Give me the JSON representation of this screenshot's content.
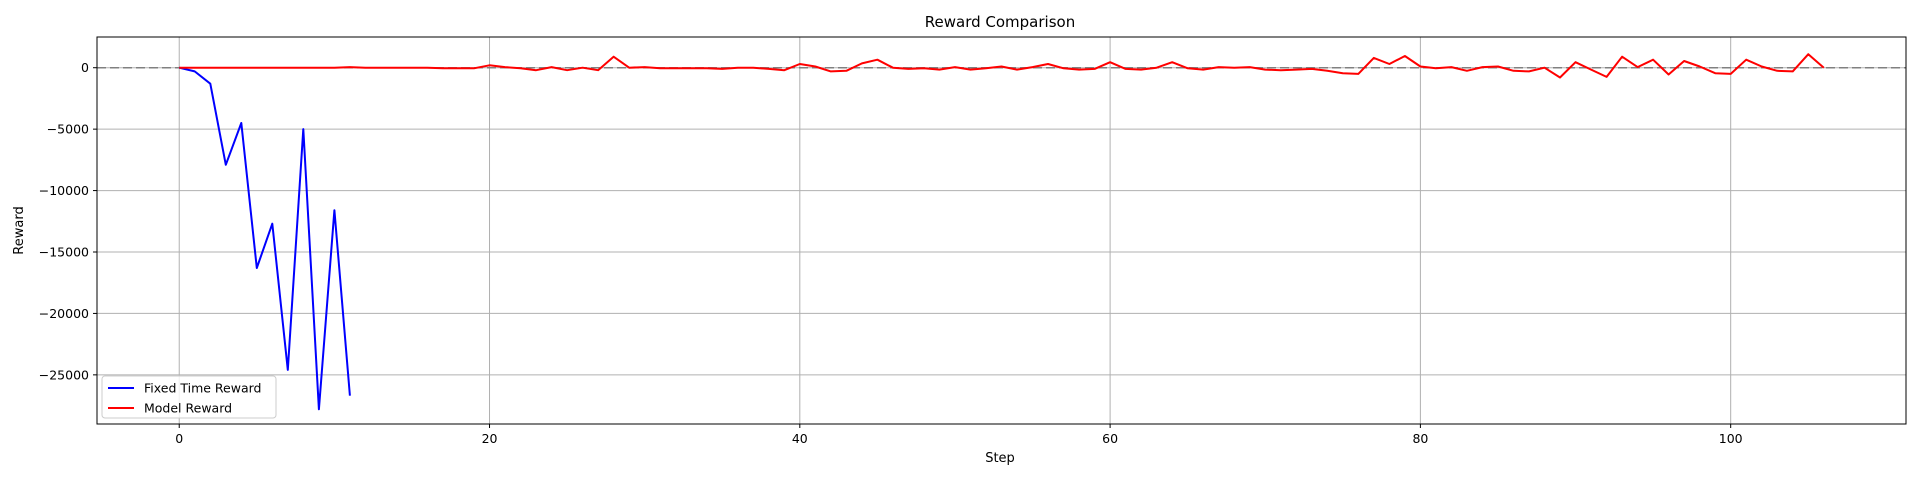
{
  "chart_data": {
    "type": "line",
    "title": "Reward Comparison",
    "xlabel": "Step",
    "ylabel": "Reward",
    "xlim": [
      -5.3,
      111.3
    ],
    "ylim": [
      -29000,
      2500
    ],
    "xticks": [
      0,
      20,
      40,
      60,
      80,
      100
    ],
    "yticks": [
      0,
      -5000,
      -10000,
      -15000,
      -20000,
      -25000
    ],
    "grid": true,
    "legend_position": "lower-left",
    "reference_line": {
      "y": 0,
      "style": "dashed",
      "color": "#808080"
    },
    "series": [
      {
        "name": "Fixed Time Reward",
        "color": "#0000ff",
        "x": [
          0,
          1,
          2,
          3,
          4,
          5,
          6,
          7,
          8,
          9,
          10,
          11
        ],
        "values": [
          0,
          -300,
          -1300,
          -7900,
          -4500,
          -16300,
          -12700,
          -24600,
          -5000,
          -27800,
          -11600,
          -26700
        ]
      },
      {
        "name": "Model Reward",
        "color": "#ff0000",
        "x": [
          0,
          1,
          2,
          3,
          4,
          5,
          6,
          7,
          8,
          9,
          10,
          11,
          12,
          13,
          14,
          15,
          16,
          17,
          18,
          19,
          20,
          21,
          22,
          23,
          24,
          25,
          26,
          27,
          28,
          29,
          30,
          31,
          32,
          33,
          34,
          35,
          36,
          37,
          38,
          39,
          40,
          41,
          42,
          43,
          44,
          45,
          46,
          47,
          48,
          49,
          50,
          51,
          52,
          53,
          54,
          55,
          56,
          57,
          58,
          59,
          60,
          61,
          62,
          63,
          64,
          65,
          66,
          67,
          68,
          69,
          70,
          71,
          72,
          73,
          74,
          75,
          76,
          77,
          78,
          79,
          80,
          81,
          82,
          83,
          84,
          85,
          86,
          87,
          88,
          89,
          90,
          91,
          92,
          93,
          94,
          95,
          96,
          97,
          98,
          99,
          100,
          101,
          102,
          103,
          104,
          105,
          106
        ],
        "values": [
          0,
          0,
          0,
          0,
          0,
          0,
          0,
          0,
          0,
          0,
          0,
          50,
          0,
          0,
          0,
          0,
          0,
          -50,
          -50,
          -50,
          200,
          50,
          -50,
          -200,
          50,
          -200,
          0,
          -200,
          900,
          0,
          50,
          -50,
          -50,
          -50,
          -50,
          -100,
          0,
          0,
          -100,
          -200,
          300,
          100,
          -300,
          -250,
          350,
          650,
          0,
          -100,
          -50,
          -150,
          50,
          -150,
          -50,
          100,
          -150,
          50,
          300,
          -50,
          -150,
          -100,
          450,
          -100,
          -150,
          0,
          450,
          -50,
          -150,
          50,
          0,
          50,
          -150,
          -200,
          -150,
          -100,
          -250,
          -450,
          -500,
          800,
          300,
          950,
          100,
          -50,
          50,
          -250,
          50,
          100,
          -250,
          -300,
          0,
          -800,
          450,
          -150,
          -750,
          900,
          50,
          650,
          -550,
          550,
          100,
          -450,
          -500,
          650,
          100,
          -250,
          -300,
          1100,
          0
        ]
      }
    ]
  }
}
